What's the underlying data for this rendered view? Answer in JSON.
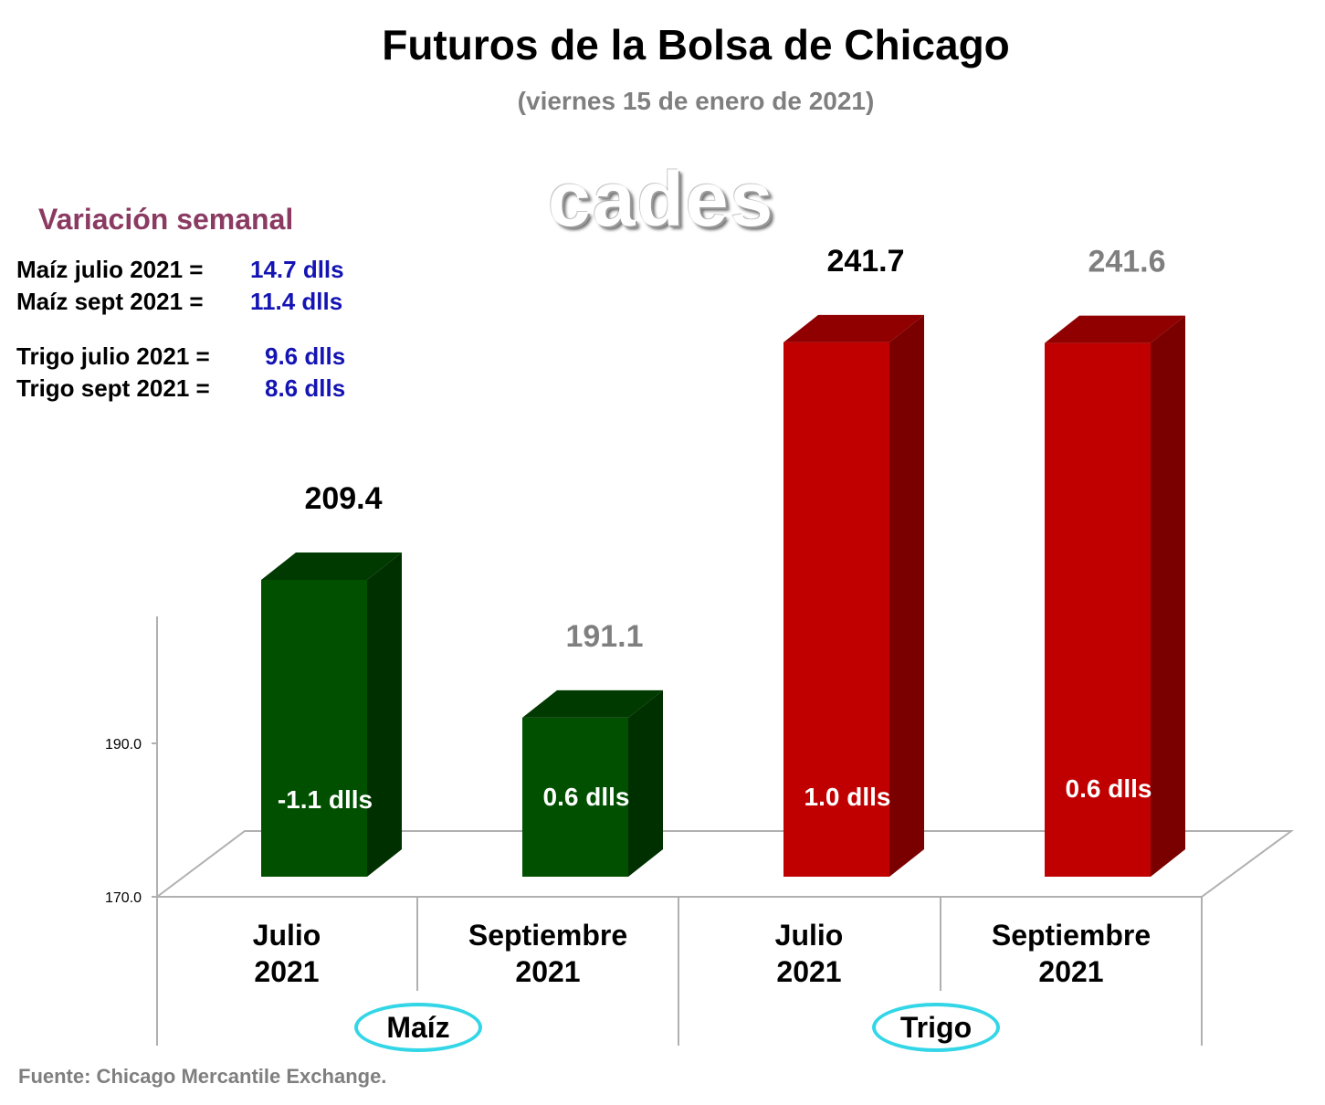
{
  "title": "Futuros de la Bolsa de Chicago",
  "subtitle": "(viernes 15 de enero de 2021)",
  "logo_text": "cades",
  "variation_panel": {
    "heading": "Variación semanal",
    "rows": [
      {
        "label": "Maíz julio 2021  =",
        "value": "14.7 dlls"
      },
      {
        "label": "Maíz sept 2021  =",
        "value": "11.4 dlls"
      },
      {
        "label": "Trigo julio 2021 =",
        "value": "9.6 dlls"
      },
      {
        "label": "Trigo sept 2021 =",
        "value": "8.6 dlls"
      }
    ]
  },
  "source": "Fuente: Chicago Mercantile Exchange.",
  "chart_data": {
    "type": "bar",
    "categories": [
      "Julio 2021",
      "Septiembre 2021",
      "Julio 2021",
      "Septiembre 2021"
    ],
    "groups": [
      "Maíz",
      "Trigo"
    ],
    "values": [
      209.4,
      191.1,
      241.7,
      241.6
    ],
    "value_labels": [
      "209.4",
      "191.1",
      "241.7",
      "241.6"
    ],
    "weekly_change_labels": [
      "-1.1 dlls",
      "0.6 dlls",
      "1.0 dlls",
      "0.6 dlls"
    ],
    "yticks": [
      "190.0",
      "170.0"
    ],
    "ylim": [
      170,
      245
    ],
    "three_d": true,
    "colors": {
      "maiz_front": "#005000",
      "maiz_side": "#003000",
      "maiz_top": "#003a00",
      "trigo_front": "#c00000",
      "trigo_side": "#7a0000",
      "trigo_top": "#900000",
      "value_label_dark": "#000000",
      "value_label_grey": "#7f7f7f",
      "group_outline": "#33d6e6"
    }
  }
}
